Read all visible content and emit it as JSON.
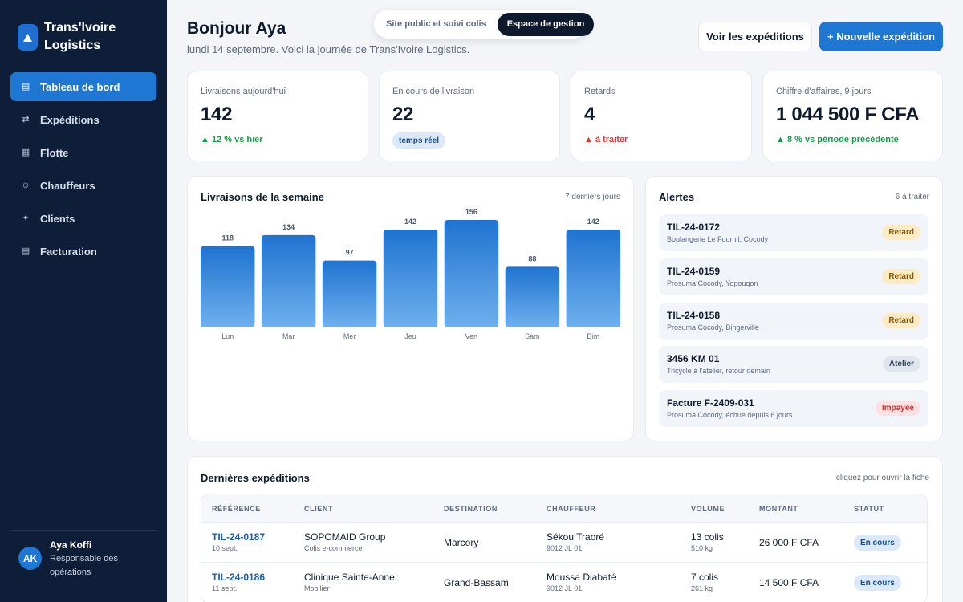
{
  "brand": {
    "name": "Trans'Ivoire Logistics",
    "logo_icon": "triangle-up-icon"
  },
  "sidebar": {
    "items": [
      {
        "label": "Tableau de bord",
        "icon": "grid-icon",
        "active": true
      },
      {
        "label": "Expéditions",
        "icon": "swap-arrows-icon",
        "active": false
      },
      {
        "label": "Flotte",
        "icon": "truck-icon",
        "active": false
      },
      {
        "label": "Chauffeurs",
        "icon": "person-icon",
        "active": false
      },
      {
        "label": "Clients",
        "icon": "clients-icon",
        "active": false
      },
      {
        "label": "Facturation",
        "icon": "invoice-icon",
        "active": false
      }
    ],
    "user": {
      "initials": "AK",
      "name": "Aya Koffi",
      "role": "Responsable des opérations"
    }
  },
  "header": {
    "greeting": "Bonjour Aya",
    "subline": "lundi 14 septembre. Voici la journée de Trans'Ivoire Logistics.",
    "switcher": {
      "public": "Site public et suivi colis",
      "admin": "Espace de gestion"
    },
    "view_button": "Voir les expéditions",
    "new_button": "+ Nouvelle expédition"
  },
  "kpis": [
    {
      "label": "Livraisons aujourd'hui",
      "value": "142",
      "note": "▲ 12 % vs hier",
      "note_type": "up"
    },
    {
      "label": "En cours de livraison",
      "value": "22",
      "pill": "temps réel"
    },
    {
      "label": "Retards",
      "value": "4",
      "note": "▲ à traiter",
      "note_type": "down"
    },
    {
      "label": "Chiffre d'affaires, 9 jours",
      "value": "1 044 500 F CFA",
      "note": "▲ 8 % vs période précédente",
      "note_type": "up"
    }
  ],
  "weekly": {
    "title": "Livraisons de la semaine",
    "meta": "7 derniers jours"
  },
  "chart_data": {
    "type": "bar",
    "categories": [
      "Lun",
      "Mar",
      "Mer",
      "Jeu",
      "Ven",
      "Sam",
      "Dim"
    ],
    "values": [
      118,
      134,
      97,
      142,
      156,
      88,
      142
    ],
    "title": "Livraisons de la semaine",
    "xlabel": "",
    "ylabel": "",
    "ylim": [
      0,
      156
    ],
    "grid": false,
    "colors": {
      "bar_top": "#1f73d0",
      "bar_bottom": "#6fb0ee"
    }
  },
  "alerts": {
    "title": "Alertes",
    "meta": "6 à traiter",
    "items": [
      {
        "title": "TIL-24-0172",
        "sub": "Boulangerie Le Fournil, Cocody",
        "badge": "Retard",
        "kind": "retard"
      },
      {
        "title": "TIL-24-0159",
        "sub": "Prosuma Cocody, Yopougon",
        "badge": "Retard",
        "kind": "retard"
      },
      {
        "title": "TIL-24-0158",
        "sub": "Prosuma Cocody, Bingerville",
        "badge": "Retard",
        "kind": "retard"
      },
      {
        "title": "3456 KM 01",
        "sub": "Tricycle à l'atelier, retour demain",
        "badge": "Atelier",
        "kind": "atelier"
      },
      {
        "title": "Facture F-2409-031",
        "sub": "Prosuma Cocody, échue depuis 6 jours",
        "badge": "Impayée",
        "kind": "impayee"
      }
    ]
  },
  "shipments": {
    "title": "Dernières expéditions",
    "meta": "cliquez pour ouvrir la fiche",
    "columns": [
      "RÉFÉRENCE",
      "CLIENT",
      "DESTINATION",
      "CHAUFFEUR",
      "VOLUME",
      "MONTANT",
      "STATUT"
    ],
    "rows": [
      {
        "ref": "TIL-24-0187",
        "date": "10 sept.",
        "client": "SOPOMAID Group",
        "client_sub": "Colis e-commerce",
        "destination": "Marcory",
        "driver": "Sékou Traoré",
        "plate": "9012 JL 01",
        "volume": "13 colis",
        "weight": "510 kg",
        "amount": "26 000 F CFA",
        "status": "En cours"
      },
      {
        "ref": "TIL-24-0186",
        "date": "11 sept.",
        "client": "Clinique Sainte-Anne",
        "client_sub": "Mobilier",
        "destination": "Grand-Bassam",
        "driver": "Moussa Diabaté",
        "plate": "9012 JL 01",
        "volume": "7 colis",
        "weight": "261 kg",
        "amount": "14 500 F CFA",
        "status": "En cours"
      }
    ]
  }
}
